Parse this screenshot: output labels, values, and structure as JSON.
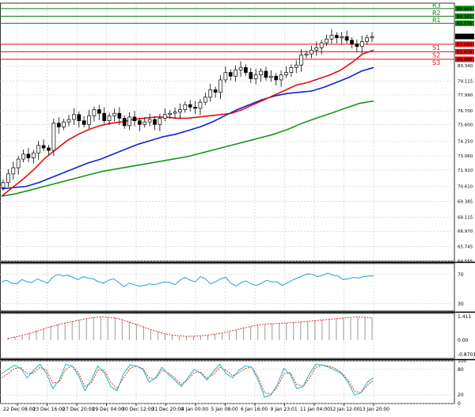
{
  "colors": {
    "background": "#ffffff",
    "grid": "#c8c8c8",
    "candle": "#000000",
    "bull_body": "#ffffff",
    "bear_body": "#000000",
    "resistance": "#0b7f0b",
    "support": "#e01010",
    "ma_fast": "#e01010",
    "ma_mid": "#0a22d8",
    "ma_slow": "#17951a",
    "rsi": "#1fa0d8",
    "macd_hist": "#9a9a9a",
    "macd_signal": "#e01010",
    "stoch_main": "#1fb5c0",
    "stoch_signal": "#e01010",
    "price_tag": "#000000",
    "level_tag_r": "#0b7f0b",
    "level_tag_s": "#e01010"
  },
  "chart_data": [
    {
      "type": "candlestick",
      "title": "",
      "xlabel": "",
      "ylabel": "",
      "ylim": [
        64.555,
        85.4
      ],
      "y_ticks": [
        "81.470",
        "80.340",
        "79.115",
        "77.990",
        "76.700",
        "75.600",
        "74.250",
        "73.060",
        "71.910",
        "70.610",
        "69.385",
        "68.115",
        "66.970",
        "65.745",
        "64.555"
      ],
      "x_ticks": [
        "22 Dec 08:00",
        "23 Dec 16:00",
        "27 Dec 20:00",
        "29 Dec 04:00",
        "30 Dec 12:00",
        "31 Dec 20:00",
        "4 Jan 00:00",
        "5 Jan 08:00",
        "6 Jan 16:00",
        "9 Jan 23:01",
        "11 Jan 04:00",
        "12 Jan 12:00",
        "13 Jan 20:00"
      ],
      "last_price": "82.710",
      "levels": [
        {
          "name": "R3",
          "value": "84.964"
        },
        {
          "name": "R2",
          "value": "84.341"
        },
        {
          "name": "R1",
          "value": "83.776"
        },
        {
          "name": "S1",
          "value": "82.080"
        },
        {
          "name": "S2",
          "value": "81.478"
        },
        {
          "name": "S3",
          "value": "80.866"
        }
      ],
      "close": [
        70.9,
        71.6,
        72.1,
        72.8,
        73.2,
        72.9,
        73.3,
        73.9,
        73.7,
        73.5,
        75.7,
        75.4,
        75.8,
        76.0,
        76.4,
        75.9,
        75.6,
        76.3,
        76.8,
        76.5,
        75.9,
        76.3,
        76.5,
        76.1,
        75.5,
        76.2,
        75.9,
        75.6,
        75.8,
        76.0,
        75.6,
        76.1,
        76.4,
        76.5,
        76.6,
        76.8,
        77.2,
        77.0,
        76.9,
        77.4,
        77.8,
        78.4,
        78.2,
        79.2,
        79.8,
        79.5,
        80.0,
        80.2,
        79.8,
        79.3,
        79.6,
        79.9,
        79.4,
        79.5,
        79.2,
        79.6,
        79.8,
        80.2,
        80.4,
        81.2,
        81.3,
        81.6,
        81.8,
        82.2,
        82.5,
        82.8,
        82.6,
        82.7,
        82.4,
        82.1,
        81.9,
        82.3,
        82.6,
        82.7
      ],
      "ma_fast": [
        69.8,
        70.5,
        71.2,
        72.0,
        72.9,
        73.6,
        74.3,
        74.8,
        75.2,
        75.5,
        75.7,
        75.8,
        76.0,
        76.1,
        76.2,
        76.2,
        76.1,
        76.1,
        76.2,
        76.3,
        76.4,
        76.5,
        76.8,
        77.2,
        77.6,
        78.0,
        78.4,
        78.8,
        79.0,
        79.3,
        79.6,
        80.0,
        80.6,
        81.3,
        81.6
      ],
      "ma_mid": [
        70.4,
        70.5,
        70.6,
        70.9,
        71.3,
        71.7,
        72.1,
        72.5,
        72.8,
        73.2,
        73.6,
        74.0,
        74.3,
        74.6,
        74.8,
        75.1,
        75.4,
        75.8,
        76.3,
        76.8,
        77.2,
        77.6,
        77.9,
        78.1,
        78.2,
        78.3,
        78.6,
        79.0,
        79.4,
        79.9,
        80.2
      ],
      "ma_slow": [
        69.8,
        70.0,
        70.3,
        70.6,
        70.9,
        71.2,
        71.5,
        71.8,
        72.0,
        72.2,
        72.4,
        72.6,
        72.8,
        73.0,
        73.3,
        73.6,
        73.9,
        74.2,
        74.5,
        74.8,
        75.2,
        75.7,
        76.1,
        76.5,
        76.9,
        77.3,
        77.5
      ]
    },
    {
      "type": "line",
      "title": "",
      "ylim": [
        20,
        85
      ],
      "y_ticks": [
        "70",
        "30"
      ],
      "values": [
        60,
        62,
        58,
        57,
        63,
        60,
        59,
        64,
        61,
        58,
        66,
        70,
        68,
        69,
        66,
        63,
        67,
        65,
        64,
        60,
        58,
        62,
        64,
        59,
        53,
        58,
        56,
        54,
        55,
        57,
        56,
        58,
        60,
        59,
        56,
        62,
        66,
        62,
        60,
        67,
        64,
        57,
        60,
        64,
        66,
        58,
        54,
        59,
        61,
        57,
        55,
        58,
        62,
        60,
        60,
        55,
        58,
        62,
        65,
        68,
        71,
        70,
        67,
        69,
        72,
        69,
        68,
        63,
        64,
        66,
        65,
        67,
        68,
        68
      ]
    },
    {
      "type": "line",
      "title": "",
      "ylim": [
        -1.1,
        1.6
      ],
      "y_ticks": [
        "1.411",
        "0.00",
        "-0.8701"
      ],
      "histogram": [
        0.15,
        0.2,
        0.3,
        0.42,
        0.55,
        0.7,
        0.85,
        0.95,
        1.05,
        1.1,
        1.2,
        1.3,
        1.38,
        1.41,
        1.4,
        1.35,
        1.25,
        1.1,
        0.95,
        0.8,
        0.65,
        0.5,
        0.38,
        0.28,
        0.22,
        0.2,
        0.22,
        0.26,
        0.3,
        0.36,
        0.42,
        0.5,
        0.6,
        0.72,
        0.82,
        0.9,
        0.95,
        0.98,
        1.0,
        1.02,
        1.05,
        1.1,
        1.15,
        1.2,
        1.22,
        1.25,
        1.28,
        1.3,
        1.32,
        1.35,
        1.36,
        1.35
      ],
      "signal": [
        0.1,
        0.18,
        0.28,
        0.4,
        0.52,
        0.66,
        0.8,
        0.92,
        1.02,
        1.1,
        1.2,
        1.28,
        1.35,
        1.38,
        1.37,
        1.32,
        1.22,
        1.08,
        0.93,
        0.78,
        0.63,
        0.5,
        0.38,
        0.3,
        0.25,
        0.22,
        0.23,
        0.26,
        0.3,
        0.36,
        0.43,
        0.52,
        0.62,
        0.72,
        0.82,
        0.9,
        0.95,
        0.98,
        1.0,
        1.02,
        1.05,
        1.08,
        1.12,
        1.16,
        1.2,
        1.24,
        1.28,
        1.32,
        1.36,
        1.38,
        1.37,
        1.32
      ]
    },
    {
      "type": "line",
      "title": "",
      "ylim": [
        0,
        100
      ],
      "y_ticks": [
        "100",
        "80",
        "20",
        "0"
      ],
      "main": [
        70,
        80,
        90,
        82,
        60,
        78,
        92,
        70,
        35,
        55,
        92,
        88,
        65,
        30,
        55,
        88,
        72,
        40,
        30,
        70,
        90,
        88,
        80,
        50,
        60,
        85,
        68,
        55,
        40,
        60,
        80,
        72,
        55,
        75,
        92,
        70,
        60,
        78,
        88,
        85,
        55,
        15,
        20,
        45,
        82,
        68,
        35,
        40,
        70,
        92,
        90,
        85,
        78,
        70,
        50,
        20,
        25,
        50,
        60
      ],
      "signal": [
        60,
        70,
        82,
        84,
        70,
        72,
        85,
        78,
        48,
        50,
        80,
        88,
        72,
        40,
        48,
        78,
        78,
        50,
        35,
        60,
        82,
        88,
        82,
        60,
        58,
        78,
        72,
        60,
        45,
        55,
        72,
        74,
        60,
        68,
        85,
        78,
        65,
        72,
        82,
        85,
        62,
        25,
        22,
        38,
        70,
        72,
        45,
        40,
        60,
        85,
        90,
        88,
        82,
        72,
        55,
        30,
        25,
        42,
        55
      ]
    }
  ]
}
